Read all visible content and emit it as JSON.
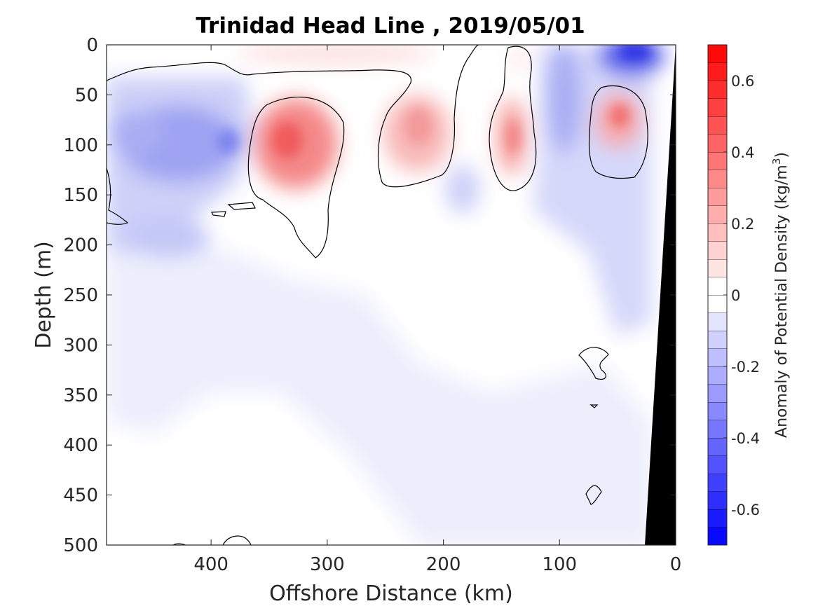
{
  "chart_data": {
    "type": "heatmap",
    "title": "Trinidad Head Line , 2019/05/01",
    "xlabel": "Offshore Distance (km)",
    "ylabel": "Depth (m)",
    "xlim": [
      490,
      0
    ],
    "ylim": [
      0,
      500
    ],
    "x_ticks": [
      "400",
      "300",
      "200",
      "100",
      "0"
    ],
    "y_ticks": [
      "0",
      "50",
      "100",
      "150",
      "200",
      "250",
      "300",
      "350",
      "400",
      "450",
      "500"
    ],
    "colorbar": {
      "label_main": "Anomaly of Potential Density (kg/m",
      "label_sup": "3",
      "label_close": ")",
      "range": [
        -0.7,
        0.7
      ],
      "step": 0.05,
      "ticks": [
        "0.6",
        "0.4",
        "0.2",
        "0",
        "-0.2",
        "-0.4",
        "-0.6"
      ],
      "negative_color": "#0000ff",
      "positive_color": "#ff0000",
      "zero_color": "#ffffff"
    },
    "colors": {
      "land": "#000000",
      "contour": "#000000"
    },
    "features": [
      {
        "name": "offshore negative anomaly core",
        "x": 430,
        "depth": 100,
        "value": -0.25
      },
      {
        "name": "deep negative anomaly",
        "x": 435,
        "depth": 190,
        "value": -0.22
      },
      {
        "name": "subsurface positive eddy",
        "x": 335,
        "depth": 100,
        "value": 0.32
      },
      {
        "name": "positive anomaly",
        "x": 220,
        "depth": 90,
        "value": 0.2
      },
      {
        "name": "positive anomaly",
        "x": 140,
        "depth": 100,
        "value": 0.22
      },
      {
        "name": "nearshore positive anomaly",
        "x": 50,
        "depth": 75,
        "value": 0.22
      },
      {
        "name": "surface negative anomaly",
        "x": 30,
        "depth": 10,
        "value": -0.45
      },
      {
        "name": "nearshore negative anomaly",
        "x": 95,
        "depth": 60,
        "value": -0.2
      },
      {
        "name": "surface positive anomaly",
        "x": 380,
        "depth": 10,
        "value": 0.08
      },
      {
        "name": "broad deep negative anomaly",
        "x": 200,
        "depth": 320,
        "value": -0.05
      }
    ]
  }
}
